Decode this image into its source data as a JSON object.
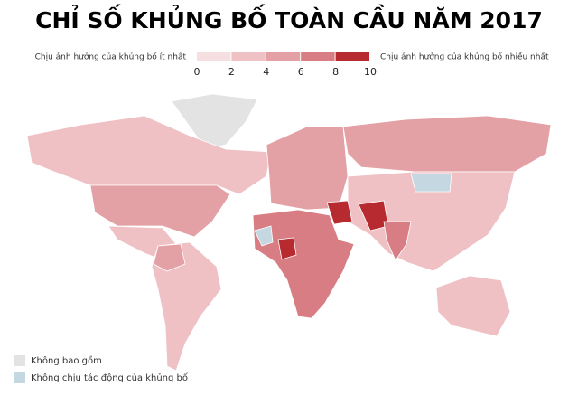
{
  "title": "CHỈ SỐ KHỦNG BỐ TOÀN CẦU NĂM 2017",
  "scale": {
    "low_label": "Chịu ảnh hưởng của khủng bố ít nhất",
    "high_label": "Chịu ảnh hưởng của khủng bố nhiều nhất",
    "ticks": [
      0,
      2,
      4,
      6,
      8,
      10
    ],
    "colors": [
      "#f6dfe0",
      "#efc1c4",
      "#e3a0a5",
      "#d77d83",
      "#b72a30"
    ]
  },
  "legend": [
    {
      "label": "Không bao gồm",
      "color": "#e3e3e3"
    },
    {
      "label": "Không chịu tác động của khủng bố",
      "color": "#c5d7e0"
    }
  ]
}
